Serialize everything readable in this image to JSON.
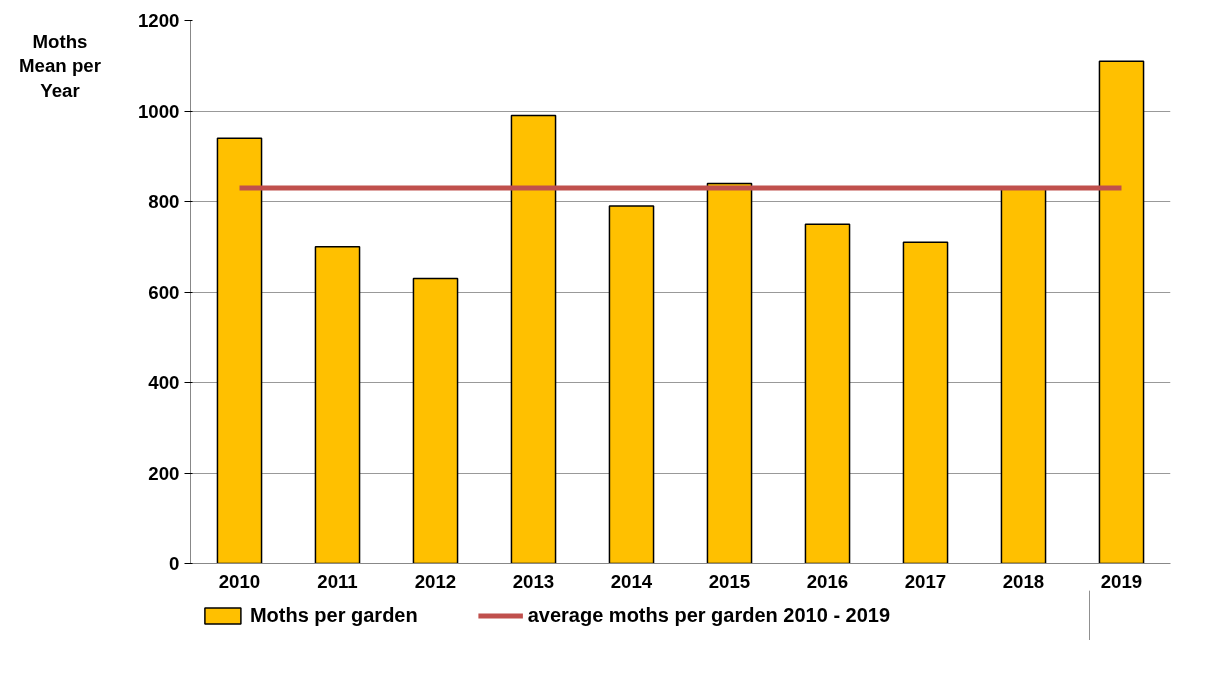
{
  "chart_data": {
    "type": "bar",
    "ylabel": "Moths Mean per Year",
    "categories": [
      "2010",
      "2011",
      "2012",
      "2013",
      "2014",
      "2015",
      "2016",
      "2017",
      "2018",
      "2019"
    ],
    "series": [
      {
        "name": "Moths per garden",
        "color": "#ffc000",
        "values": [
          940,
          700,
          630,
          990,
          790,
          840,
          750,
          710,
          830,
          1110
        ]
      },
      {
        "name": "average moths per garden 2010 - 2019",
        "type": "line",
        "color": "#c0504d",
        "values": [
          830,
          830,
          830,
          830,
          830,
          830,
          830,
          830,
          830,
          830
        ]
      }
    ],
    "ylim": [
      0,
      1200
    ],
    "yticks": [
      0,
      200,
      400,
      600,
      800,
      1000,
      1200
    ],
    "grid": "y",
    "legend": "bottom",
    "marker": "none",
    "line_style": "solid"
  }
}
